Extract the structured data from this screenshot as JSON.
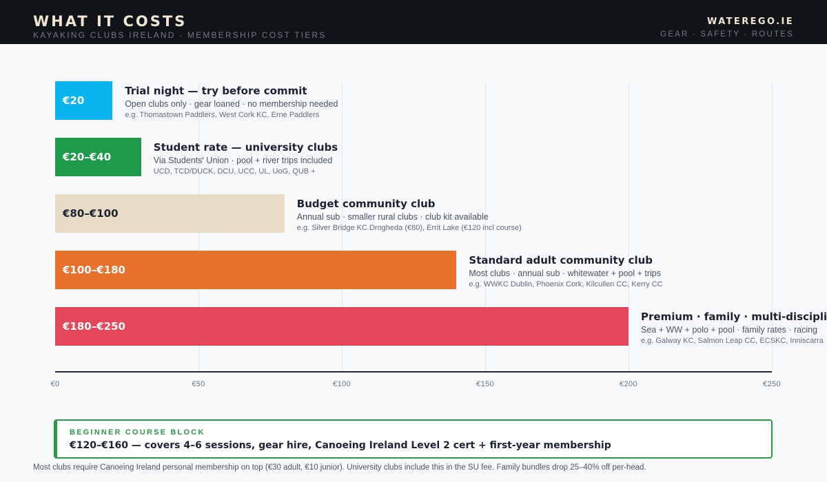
{
  "header": {
    "title": "WHAT IT COSTS",
    "subtitle": "KAYAKING CLUBS IRELAND · MEMBERSHIP COST TIERS",
    "brand": "WATEREGO.IE",
    "nav": "GEAR · SAFETY · ROUTES"
  },
  "chart_data": {
    "type": "bar",
    "orientation": "horizontal",
    "xlim": [
      0,
      250
    ],
    "x_ticks": [
      0,
      50,
      100,
      150,
      200,
      250
    ],
    "x_tick_labels": [
      "€0",
      "€50",
      "€100",
      "€150",
      "€200",
      "€250"
    ],
    "grid": true,
    "bars": [
      {
        "label": "€20",
        "value": 20,
        "color": "#0ab4ee",
        "label_color": "#ffffff",
        "title": "Trial night — try before commit",
        "desc": "Open clubs only · gear loaned · no membership needed",
        "examples": "e.g. Thomastown Paddlers, West Cork KC, Erne Paddlers"
      },
      {
        "label": "€20–€40",
        "value": 30,
        "color": "#1e9a4b",
        "label_color": "#ffffff",
        "title": "Student rate — university clubs",
        "desc": "Via Students' Union · pool + river trips included",
        "examples": "UCD, TCD/DUCK, DCU, UCC, UL, UoG, QUB +"
      },
      {
        "label": "€80–€100",
        "value": 80,
        "color": "#e8dcc6",
        "label_color": "#1b2230",
        "title": "Budget community club",
        "desc": "Annual sub · smaller rural clubs · club kit available",
        "examples": "e.g. Silver Bridge KC Drogheda (€80), Errit Lake (€120 incl course)"
      },
      {
        "label": "€100–€180",
        "value": 140,
        "color": "#e8712c",
        "label_color": "#ffffff",
        "title": "Standard adult community club",
        "desc": "Most clubs · annual sub · whitewater + pool + trips",
        "examples": "e.g. WWKC Dublin, Phoenix Cork, Kilcullen CC, Kerry CC"
      },
      {
        "label": "€180–€250",
        "value": 200,
        "color": "#e5475a",
        "label_color": "#ffffff",
        "title": "Premium · family · multi-discipline",
        "desc": "Sea + WW + polo + pool · family rates · racing",
        "examples": "e.g. Galway KC, Salmon Leap CC, ECSKC, Inniscarra"
      }
    ]
  },
  "callout": {
    "kicker": "BEGINNER COURSE BLOCK",
    "text": "€120–€160 — covers 4–6 sessions, gear hire, Canoeing Ireland Level 2 cert + first-year membership",
    "color": "#2a9a47"
  },
  "footnote": "Most clubs require Canoeing Ireland personal membership on top (€30 adult, €10 junior). University clubs include this in the SU fee. Family bundles drop 25–40% off per-head."
}
